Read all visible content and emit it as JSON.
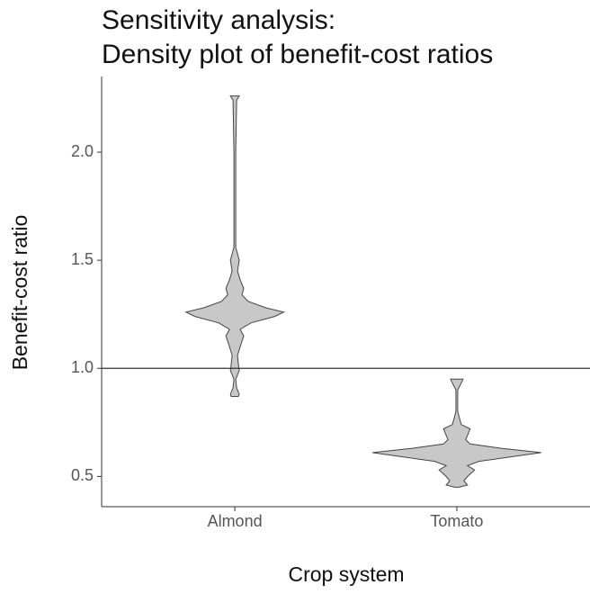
{
  "chart_data": {
    "type": "violin",
    "title": [
      "Sensitivity analysis:",
      "Density plot of benefit-cost ratios"
    ],
    "x_label": "Crop system",
    "y_label": "Benefit-cost ratio",
    "categories": [
      "Almond",
      "Tomato"
    ],
    "ylim": [
      0.36,
      2.35
    ],
    "yticks": [
      {
        "value": 0.5,
        "label": "0.5"
      },
      {
        "value": 1.0,
        "label": "1.0"
      },
      {
        "value": 1.5,
        "label": "1.5"
      },
      {
        "value": 2.0,
        "label": "2.0"
      }
    ],
    "hline": 1.0,
    "color": "#c8c8c8",
    "violins": [
      {
        "y": [
          0.87,
          0.88,
          0.91,
          0.95,
          0.99,
          1.02,
          1.06,
          1.1,
          1.15,
          1.18,
          1.21,
          1.24,
          1.26,
          1.28,
          1.31,
          1.34,
          1.37,
          1.41,
          1.45,
          1.5,
          1.53,
          1.56,
          1.65,
          2.0,
          2.24,
          2.26
        ],
        "width": [
          0.04,
          0.05,
          0.02,
          0.01,
          0.05,
          0.04,
          0.03,
          0.06,
          0.1,
          0.06,
          0.18,
          0.45,
          0.55,
          0.35,
          0.15,
          0.08,
          0.1,
          0.06,
          0.03,
          0.05,
          0.03,
          0.01,
          0.01,
          0.01,
          0.02,
          0.05
        ]
      },
      {
        "y": [
          0.45,
          0.46,
          0.48,
          0.5,
          0.53,
          0.55,
          0.57,
          0.59,
          0.61,
          0.63,
          0.65,
          0.67,
          0.69,
          0.72,
          0.74,
          0.8,
          0.9,
          0.94,
          0.95
        ],
        "width": [
          0.02,
          0.12,
          0.08,
          0.12,
          0.2,
          0.12,
          0.25,
          0.6,
          0.95,
          0.5,
          0.15,
          0.1,
          0.12,
          0.15,
          0.05,
          0.01,
          0.01,
          0.06,
          0.07
        ]
      }
    ]
  }
}
